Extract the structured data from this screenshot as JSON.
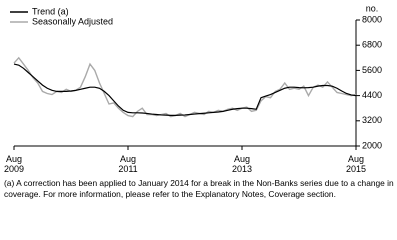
{
  "chart_data": {
    "type": "line",
    "unit": "no.",
    "categories": [
      "Aug\n2009",
      null,
      null,
      null,
      null,
      null,
      null,
      null,
      null,
      null,
      null,
      null,
      null,
      null,
      null,
      null,
      null,
      null,
      null,
      null,
      null,
      null,
      null,
      null,
      "Aug\n2011",
      null,
      null,
      null,
      null,
      null,
      null,
      null,
      null,
      null,
      null,
      null,
      null,
      null,
      null,
      null,
      null,
      null,
      null,
      null,
      null,
      null,
      null,
      null,
      "Aug\n2013",
      null,
      null,
      null,
      null,
      null,
      null,
      null,
      null,
      null,
      null,
      null,
      null,
      null,
      null,
      null,
      null,
      null,
      null,
      null,
      null,
      null,
      null,
      null,
      "Aug\n2015"
    ],
    "series": [
      {
        "name": "Trend (a)",
        "color": "#000000",
        "values": [
          5900,
          5850,
          5700,
          5500,
          5300,
          5100,
          4900,
          4750,
          4650,
          4600,
          4600,
          4600,
          4620,
          4650,
          4700,
          4750,
          4800,
          4800,
          4750,
          4600,
          4400,
          4150,
          3900,
          3700,
          3600,
          3580,
          3580,
          3570,
          3550,
          3520,
          3500,
          3480,
          3470,
          3460,
          3460,
          3470,
          3480,
          3500,
          3520,
          3540,
          3560,
          3580,
          3600,
          3620,
          3650,
          3700,
          3750,
          3780,
          3800,
          3800,
          3780,
          3750,
          4300,
          4380,
          4450,
          4550,
          4650,
          4750,
          4800,
          4800,
          4780,
          4770,
          4780,
          4800,
          4850,
          4880,
          4880,
          4850,
          4750,
          4620,
          4500,
          4430,
          4400
        ]
      },
      {
        "name": "Seasonally Adjusted",
        "color": "#aaaaaa",
        "values": [
          5950,
          6200,
          5900,
          5600,
          5250,
          5000,
          4600,
          4500,
          4450,
          4600,
          4550,
          4700,
          4600,
          4650,
          4800,
          5300,
          5900,
          5600,
          5000,
          4500,
          4000,
          4050,
          3800,
          3600,
          3450,
          3400,
          3650,
          3800,
          3500,
          3500,
          3450,
          3500,
          3550,
          3400,
          3450,
          3550,
          3400,
          3500,
          3600,
          3550,
          3500,
          3650,
          3600,
          3700,
          3650,
          3750,
          3800,
          3700,
          3800,
          3850,
          3650,
          3700,
          4150,
          4350,
          4300,
          4600,
          4700,
          5000,
          4700,
          4750,
          4700,
          4850,
          4400,
          4800,
          4900,
          4800,
          5050,
          4800,
          4550,
          4500,
          4450,
          4400,
          4450
        ]
      }
    ],
    "ylim": [
      2000,
      8000
    ],
    "yticks": [
      2000,
      3200,
      4400,
      5600,
      6800,
      8000
    ],
    "footnote": "(a)  A correction has been applied to January 2014 for a break in the Non-Banks series due to a change in coverage. For more information, please refer to the Explanatory Notes, Coverage section."
  }
}
